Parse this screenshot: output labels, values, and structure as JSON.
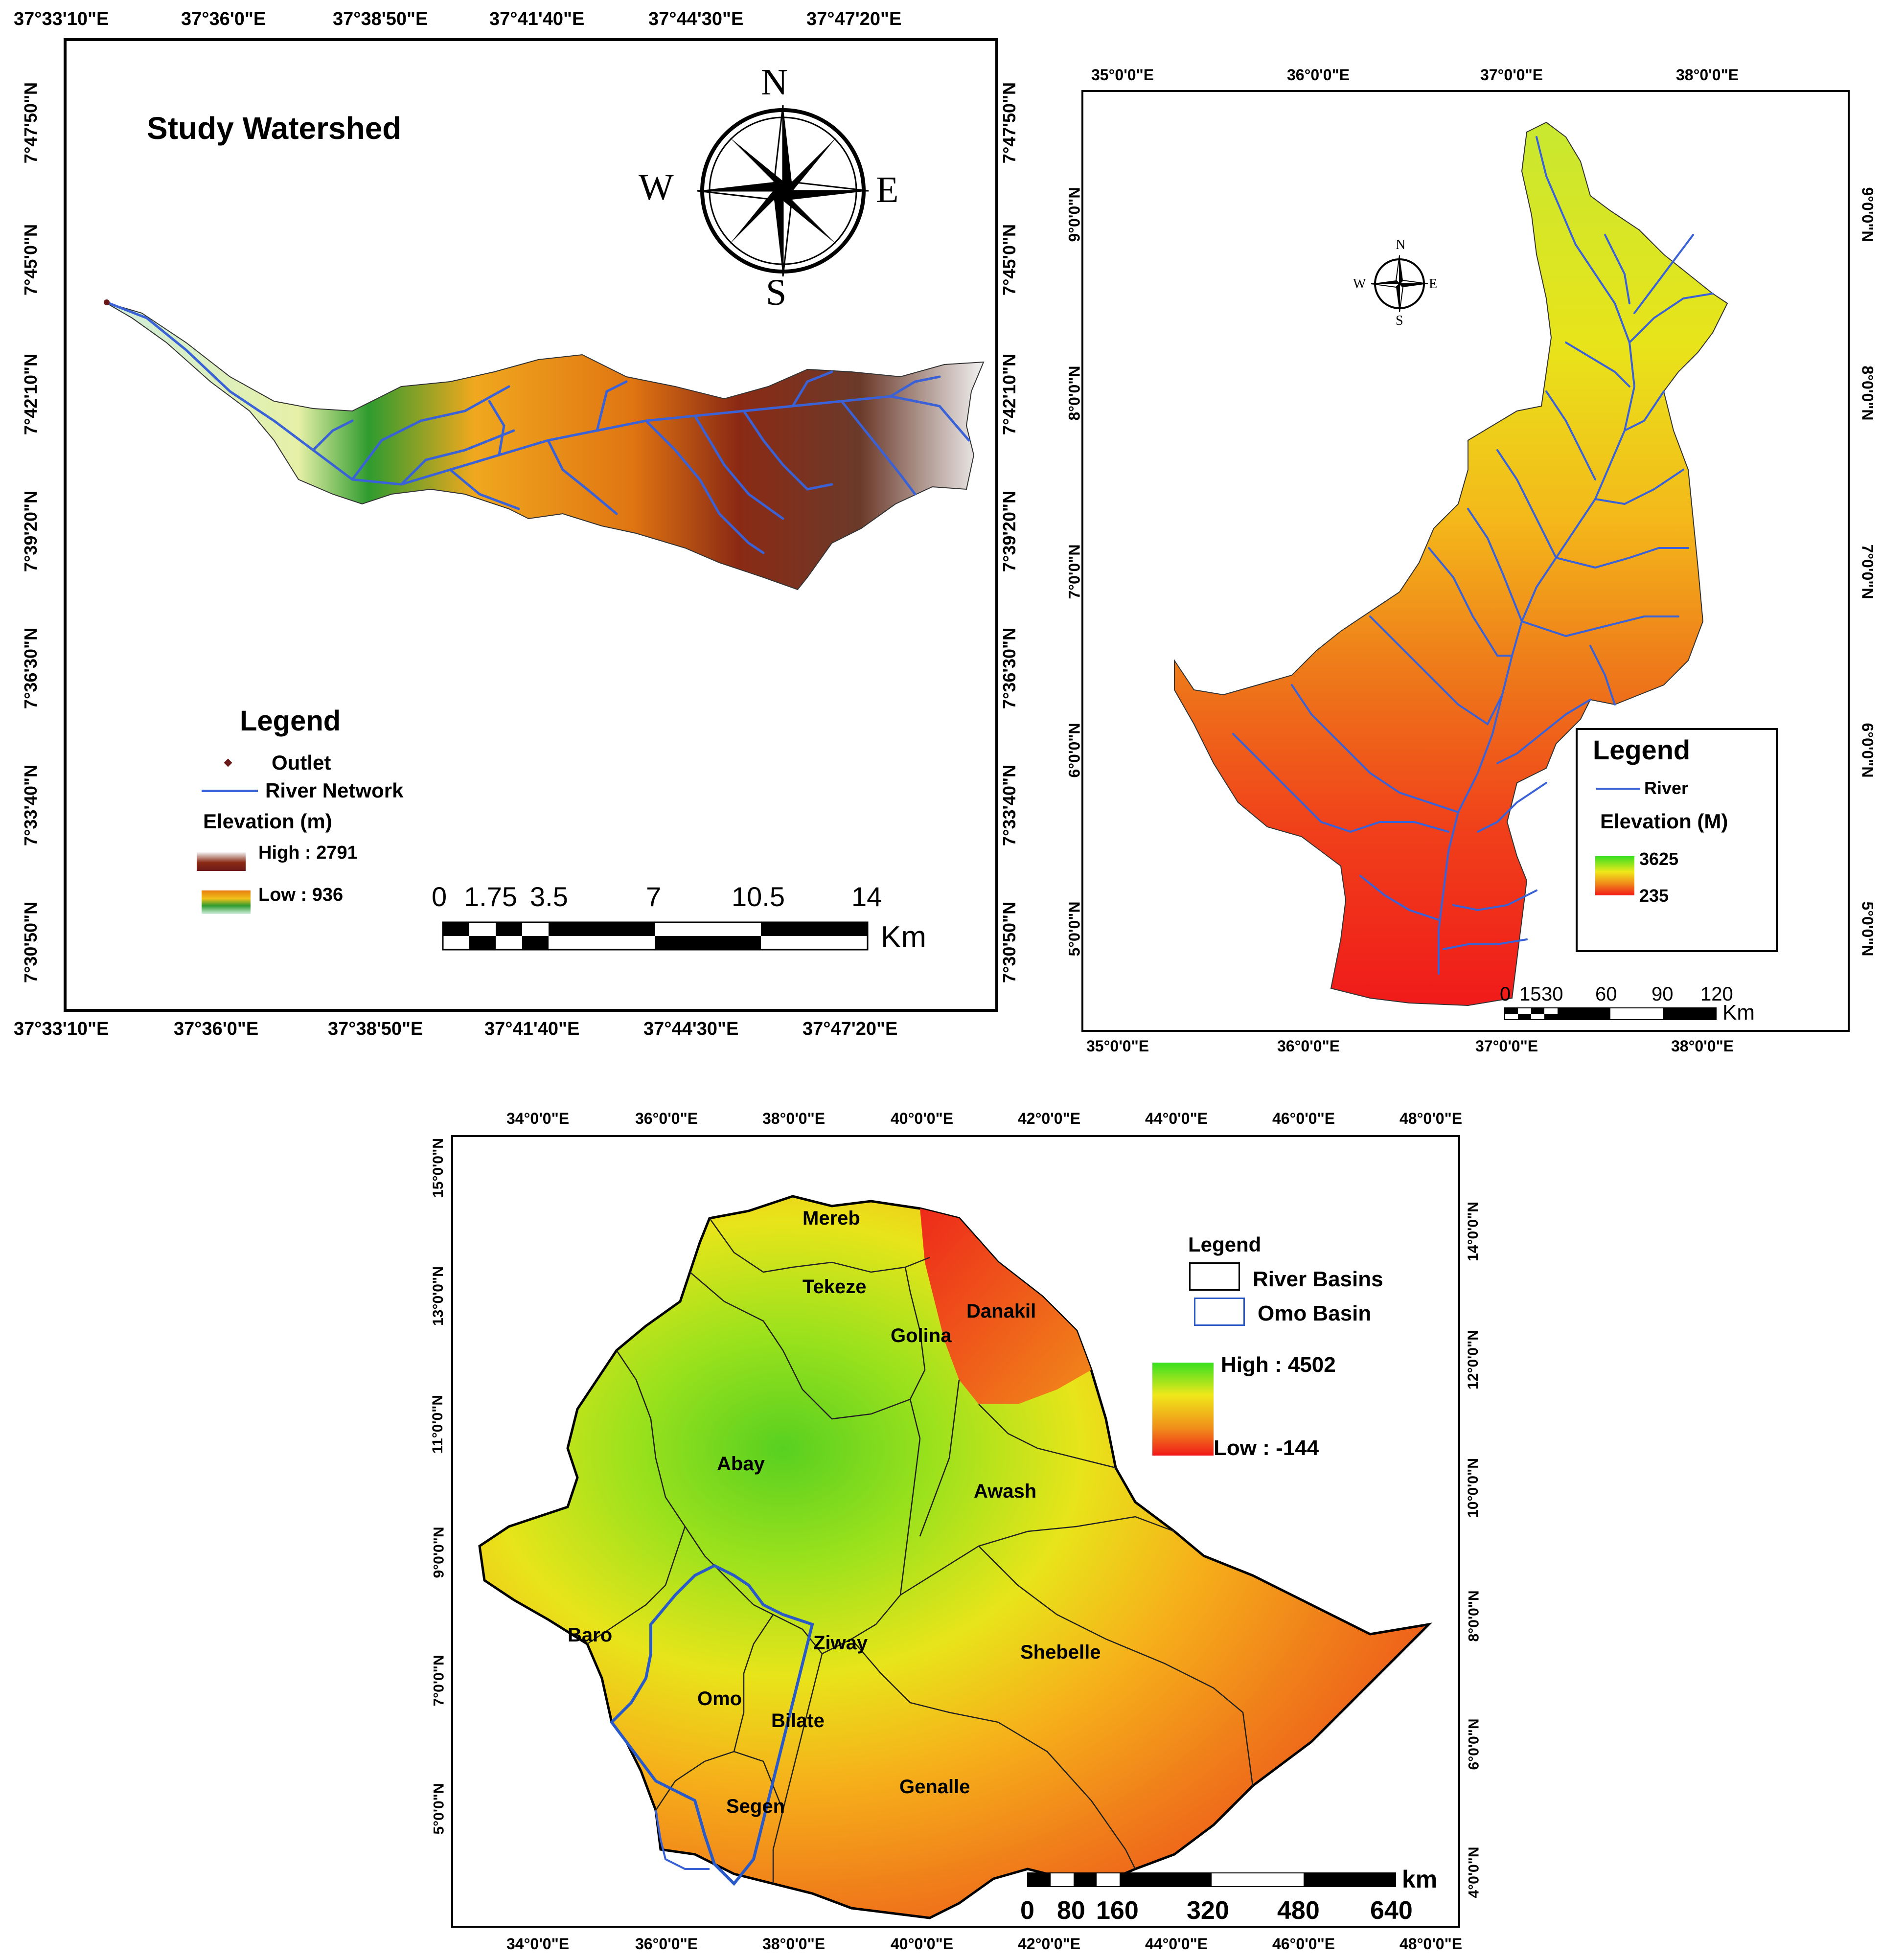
{
  "panel_a": {
    "title": "Study Watershed",
    "top_ticks": [
      "37°33'10\"E",
      "37°36'0\"E",
      "37°38'50\"E",
      "37°41'40\"E",
      "37°44'30\"E",
      "37°47'20\"E"
    ],
    "bottom_ticks": [
      "37°33'10\"E",
      "37°36'0\"E",
      "37°38'50\"E",
      "37°41'40\"E",
      "37°44'30\"E",
      "37°47'20\"E"
    ],
    "left_ticks": [
      "7°47'50\"N",
      "7°45'0\"N",
      "7°42'10\"N",
      "7°39'20\"N",
      "7°36'30\"N",
      "7°33'40\"N",
      "7°30'50\"N"
    ],
    "right_ticks": [
      "7°47'50\"N",
      "7°45'0\"N",
      "7°42'10\"N",
      "7°39'20\"N",
      "7°36'30\"N",
      "7°33'40\"N",
      "7°30'50\"N"
    ],
    "north_arrow": {
      "n": "N",
      "s": "S",
      "e": "E",
      "w": "W"
    },
    "legend": {
      "title": "Legend",
      "outlet": "Outlet",
      "river": "River Network",
      "elev_title": "Elevation (m)",
      "high": "High : 2791",
      "low": "Low : 936"
    },
    "scale": {
      "labels": [
        "0",
        "1.75",
        "3.5",
        "7",
        "10.5",
        "14"
      ],
      "unit": "Km"
    },
    "colors": {
      "high": "#8b2a14",
      "mid": "#e87d10",
      "low": "#2f9b2f",
      "river": "#3a62d6"
    }
  },
  "panel_b": {
    "top_ticks": [
      "35°0'0\"E",
      "36°0'0\"E",
      "37°0'0\"E",
      "38°0'0\"E"
    ],
    "bottom_ticks": [
      "35°0'0\"E",
      "36°0'0\"E",
      "37°0'0\"E",
      "38°0'0\"E"
    ],
    "left_ticks": [
      "9°0'0\"N",
      "8°0'0\"N",
      "7°0'0\"N",
      "6°0'0\"N",
      "5°0'0\"N"
    ],
    "right_ticks": [
      "9°0'0\"N",
      "8°0'0\"N",
      "7°0'0\"N",
      "6°0'0\"N",
      "5°0'0\"N"
    ],
    "north_arrow": {
      "n": "N",
      "s": "S",
      "e": "E",
      "w": "W"
    },
    "legend": {
      "title": "Legend",
      "river": "River",
      "elev_title": "Elevation (M)",
      "high": "3625",
      "low": "235"
    },
    "scale": {
      "labels": [
        "0",
        "15",
        "30",
        "60",
        "90",
        "120"
      ],
      "unit": "Km"
    }
  },
  "panel_c": {
    "top_ticks": [
      "34°0'0\"E",
      "36°0'0\"E",
      "38°0'0\"E",
      "40°0'0\"E",
      "42°0'0\"E",
      "44°0'0\"E",
      "46°0'0\"E",
      "48°0'0\"E"
    ],
    "bottom_ticks": [
      "34°0'0\"E",
      "36°0'0\"E",
      "38°0'0\"E",
      "40°0'0\"E",
      "42°0'0\"E",
      "44°0'0\"E",
      "46°0'0\"E",
      "48°0'0\"E"
    ],
    "left_ticks": [
      "15°0'0\"N",
      "13°0'0\"N",
      "11°0'0\"N",
      "9°0'0\"N",
      "7°0'0\"N",
      "5°0'0\"N"
    ],
    "right_ticks": [
      "14°0'0\"N",
      "12°0'0\"N",
      "10°0'0\"N",
      "8°0'0\"N",
      "6°0'0\"N",
      "4°0'0\"N"
    ],
    "basins": [
      "Mereb",
      "Tekeze",
      "Danakil",
      "Golina",
      "Abay",
      "Awash",
      "Baro",
      "Ziway",
      "Shebelle",
      "Omo",
      "Bilate",
      "Genalle",
      "Segen"
    ],
    "legend": {
      "title": "Legend",
      "river_basins": "River Basins",
      "omo_basin": "Omo Basin",
      "high": "High : 4502",
      "low": "Low : -144"
    },
    "scale": {
      "labels": [
        "0",
        "80",
        "160",
        "320",
        "480",
        "640"
      ],
      "unit": "km"
    }
  }
}
